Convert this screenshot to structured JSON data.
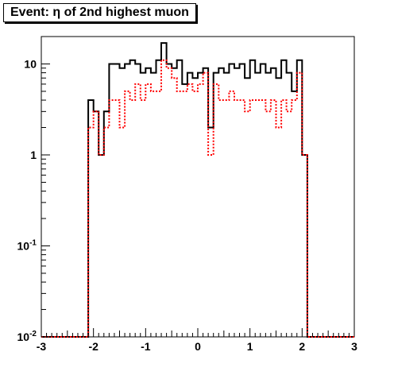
{
  "chart_data": {
    "type": "step-histogram",
    "title": "Event: η of 2nd highest muon",
    "xlabel": "",
    "ylabel": "",
    "xlim": [
      -3,
      3
    ],
    "ylim": [
      0.01,
      20
    ],
    "yscale": "log",
    "grid": false,
    "legend": "none",
    "x_ticks": [
      -3,
      -2,
      -1,
      0,
      1,
      2,
      3
    ],
    "x_tick_labels": [
      "-3",
      "-2",
      "-1",
      "0",
      "1",
      "2",
      "3"
    ],
    "y_ticks": [
      0.01,
      0.1,
      1,
      10
    ],
    "y_tick_labels": [
      {
        "base": "10",
        "exp": "-2"
      },
      {
        "base": "10",
        "exp": "-1"
      },
      {
        "base": "1",
        "exp": ""
      },
      {
        "base": "10",
        "exp": ""
      }
    ],
    "bin_edges": [
      -3,
      -2.9,
      -2.8,
      -2.7,
      -2.6,
      -2.5,
      -2.4,
      -2.3,
      -2.2,
      -2.1,
      -2.0,
      -1.9,
      -1.8,
      -1.7,
      -1.6,
      -1.5,
      -1.4,
      -1.3,
      -1.2,
      -1.1,
      -1.0,
      -0.9,
      -0.8,
      -0.7,
      -0.6,
      -0.5,
      -0.4,
      -0.3,
      -0.2,
      -0.1,
      0.0,
      0.1,
      0.2,
      0.3,
      0.4,
      0.5,
      0.6,
      0.7,
      0.8,
      0.9,
      1.0,
      1.1,
      1.2,
      1.3,
      1.4,
      1.5,
      1.6,
      1.7,
      1.8,
      1.9,
      2.0,
      2.1,
      2.2,
      2.3,
      2.4,
      2.5,
      2.6,
      2.7,
      2.8,
      2.9,
      3.0
    ],
    "series": [
      {
        "color": "#000000",
        "style": "solid",
        "values": [
          0,
          0,
          0,
          0,
          0,
          0,
          0,
          0,
          0,
          4,
          3,
          1,
          3,
          10,
          10,
          9,
          10,
          11,
          10,
          8,
          9,
          8,
          11,
          17,
          10,
          9,
          11,
          6,
          8,
          7,
          8,
          9,
          2,
          8,
          9,
          8,
          10,
          9,
          10,
          7,
          11,
          8,
          10,
          8,
          9,
          7,
          11,
          8,
          5,
          11,
          1,
          0,
          0,
          0,
          0,
          0,
          0,
          0,
          0,
          0
        ]
      },
      {
        "color": "#ff0000",
        "style": "dotted",
        "values": [
          0,
          0,
          0,
          0,
          0,
          0,
          0,
          0,
          0,
          2,
          3,
          1,
          2,
          4,
          4,
          2,
          5,
          4,
          6,
          4,
          6,
          5,
          5,
          11,
          9,
          7,
          5,
          5,
          6,
          5,
          6,
          8,
          1,
          6,
          4,
          4,
          5,
          4,
          4,
          3,
          4,
          4,
          4,
          3,
          4,
          2,
          4,
          3,
          4,
          8,
          1,
          0,
          0,
          0,
          0,
          0,
          0,
          0,
          0,
          0
        ]
      }
    ]
  }
}
